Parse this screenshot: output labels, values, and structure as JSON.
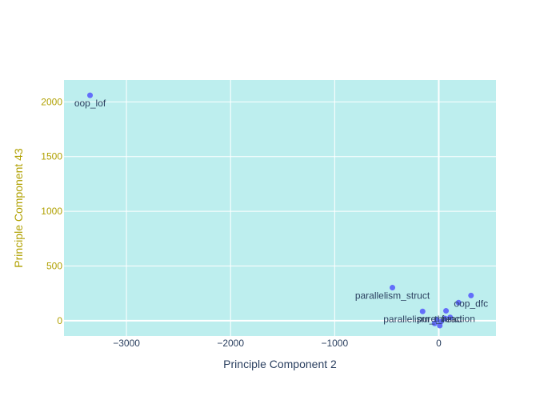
{
  "chart_data": {
    "type": "scatter",
    "title": "",
    "xlabel": "Principle Component 2",
    "ylabel": "Principle Component 43",
    "xlim": [
      -3600,
      550
    ],
    "ylim": [
      -140,
      2200
    ],
    "xticks": [
      -3000,
      -2000,
      -1000,
      0
    ],
    "yticks": [
      0,
      500,
      1000,
      1500,
      2000
    ],
    "xtick_labels": [
      "−3000",
      "−2000",
      "−1000",
      "0"
    ],
    "ytick_labels": [
      "0",
      "500",
      "1000",
      "1500",
      "2000"
    ],
    "grid": true,
    "colors": {
      "plot_background": "#bdeeee",
      "grid": "#ffffff",
      "marker": "#636efa",
      "x_text": "#2a3f5f",
      "y_text": "#b0a000"
    },
    "points": [
      {
        "label": "oop_lof",
        "x": -3350,
        "y": 2060
      },
      {
        "label": "parallelism_struct",
        "x": -445,
        "y": 302
      },
      {
        "label": "oop_dfc",
        "x": 310,
        "y": 230
      },
      {
        "label": "",
        "x": 190,
        "y": 165
      },
      {
        "label": "pure_function",
        "x": 70,
        "y": 90
      },
      {
        "label": "parallelism_thread",
        "x": -155,
        "y": 85
      },
      {
        "label": "",
        "x": 110,
        "y": 30
      },
      {
        "label": "",
        "x": 60,
        "y": 20
      },
      {
        "label": "",
        "x": -20,
        "y": 10
      },
      {
        "label": "",
        "x": 20,
        "y": -10
      },
      {
        "label": "",
        "x": -40,
        "y": -25
      },
      {
        "label": "",
        "x": 10,
        "y": -45
      }
    ]
  }
}
